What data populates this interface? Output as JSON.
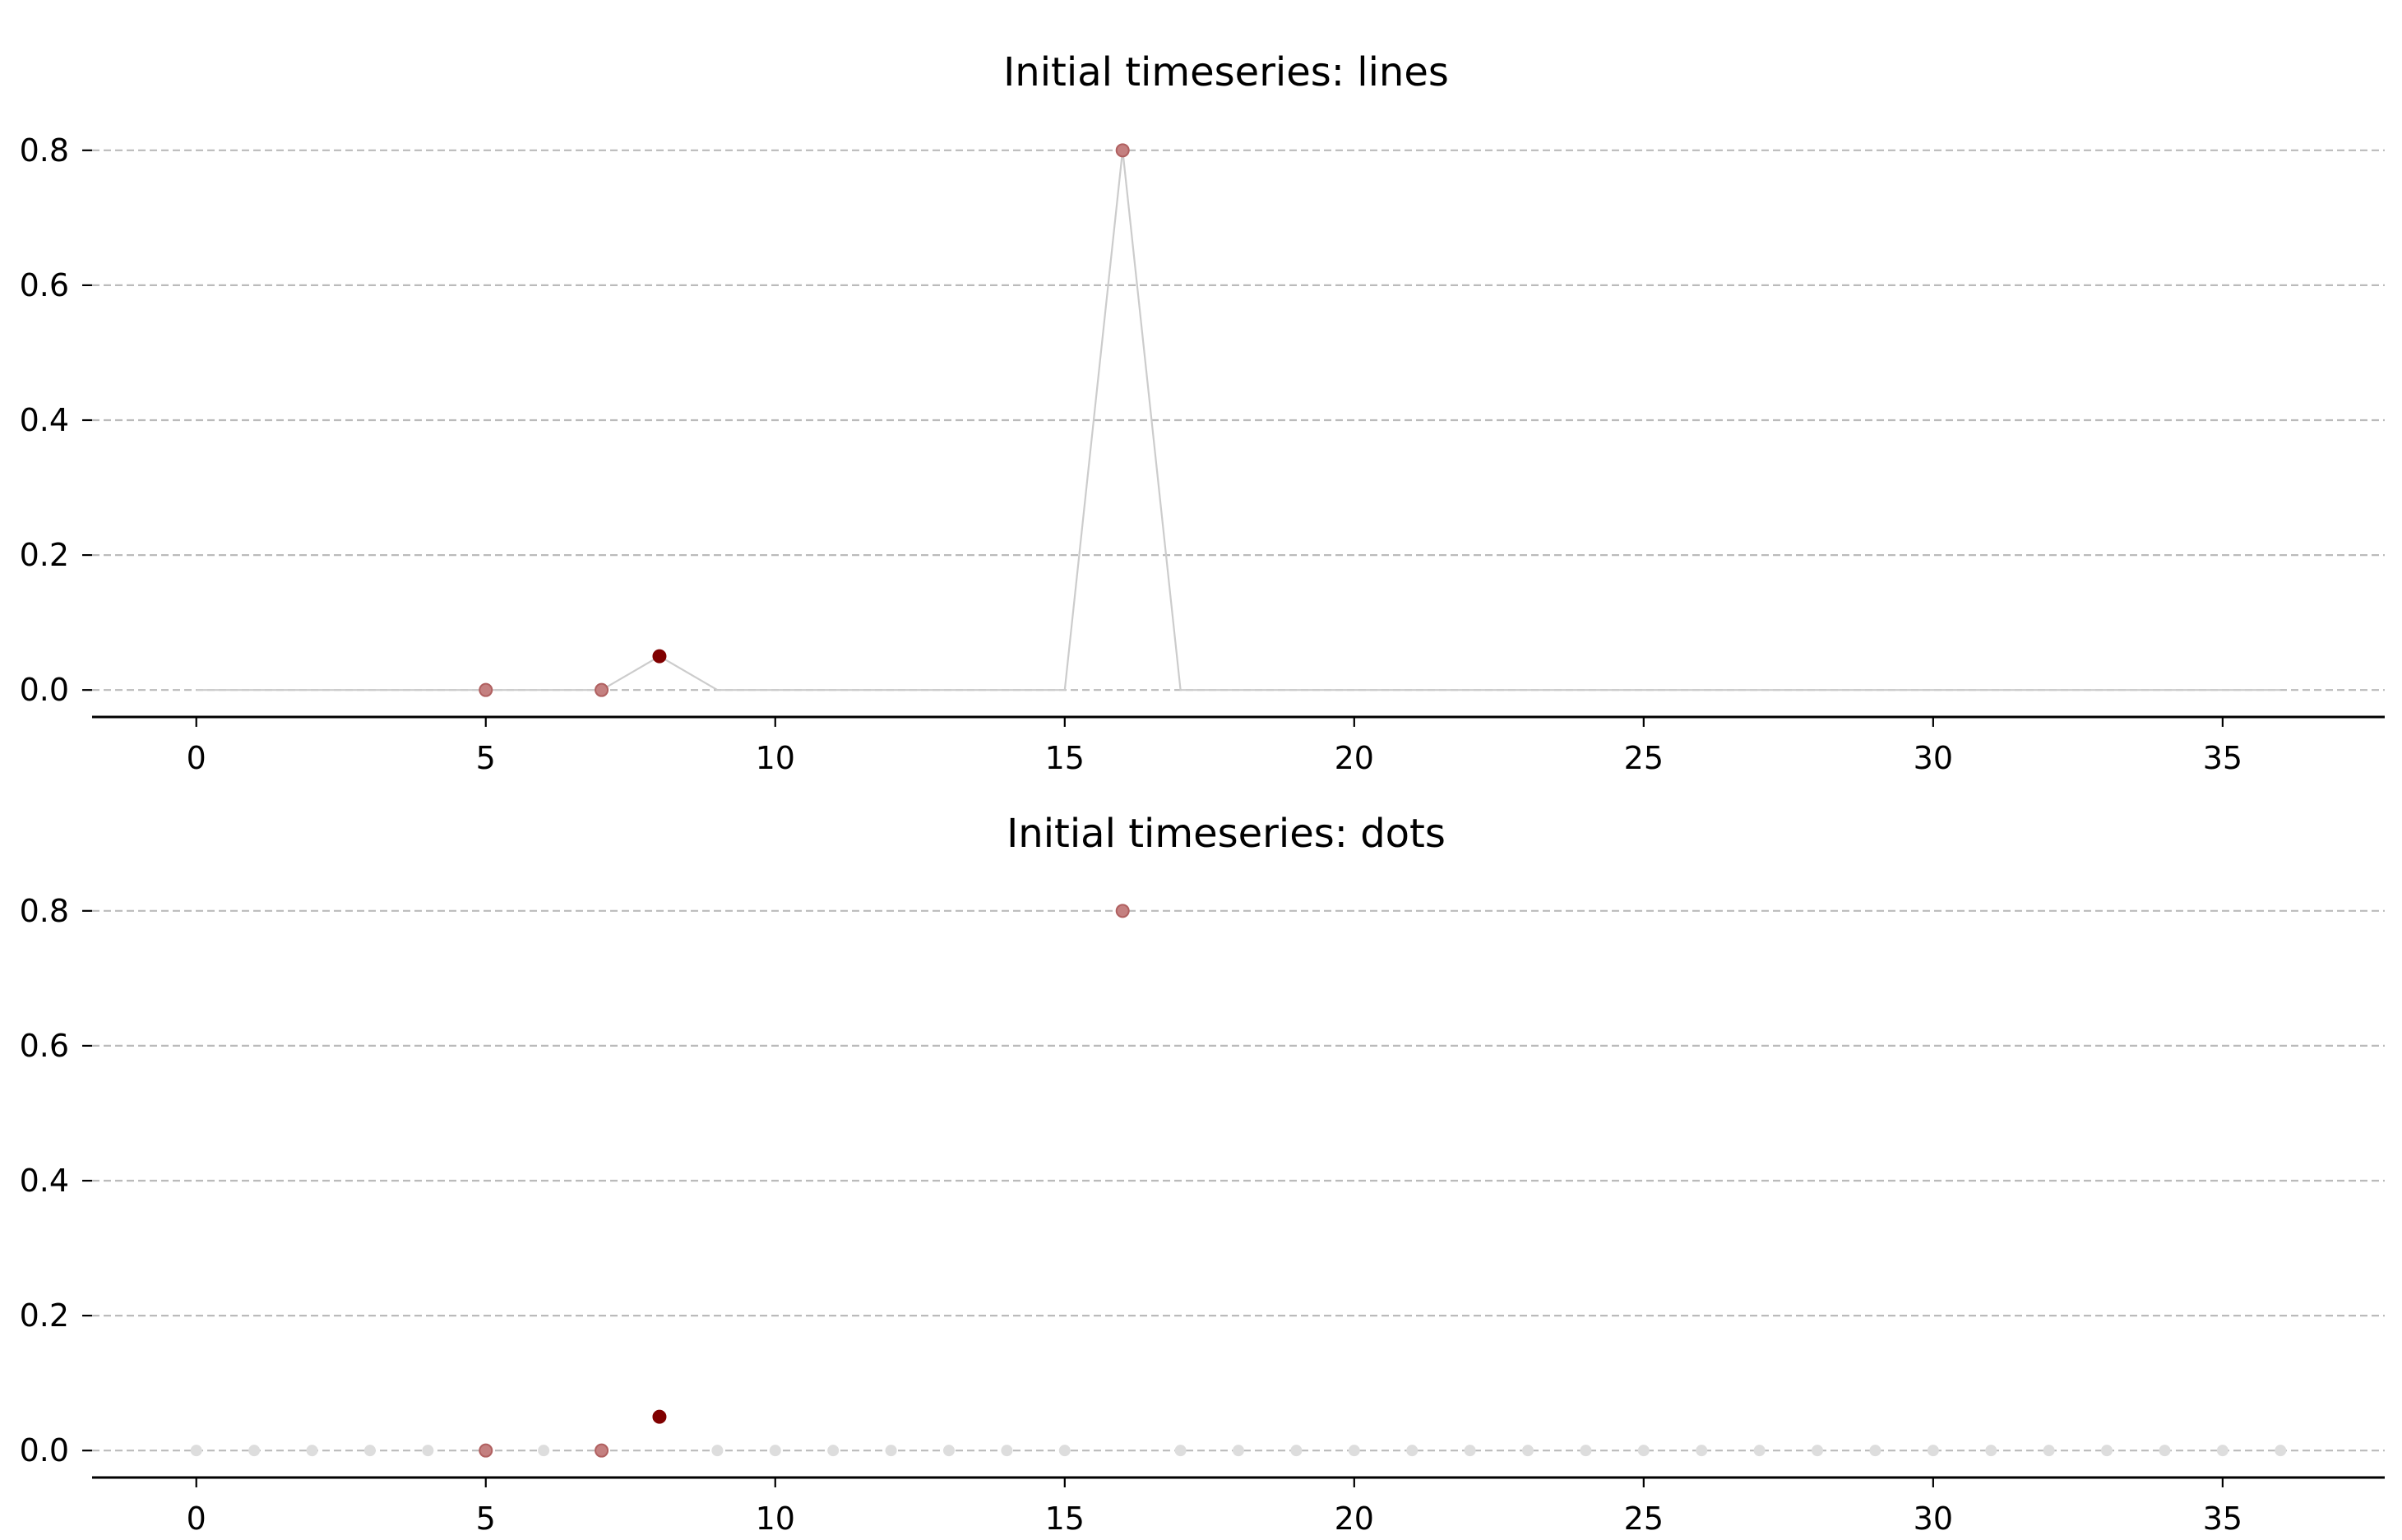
{
  "chart_data": [
    {
      "type": "line",
      "title": "Initial timeseries: lines",
      "xlabel": "",
      "ylabel": "",
      "x": [
        0,
        1,
        2,
        3,
        4,
        5,
        6,
        7,
        8,
        9,
        10,
        11,
        12,
        13,
        14,
        15,
        16,
        17,
        18,
        19,
        20,
        21,
        22,
        23,
        24,
        25,
        26,
        27,
        28,
        29,
        30,
        31,
        32,
        33,
        34,
        35,
        36
      ],
      "series": [
        {
          "values": [
            0,
            0,
            0,
            0,
            0,
            0,
            0,
            0,
            0.05,
            0,
            0,
            0,
            0,
            0,
            0,
            0,
            0.8,
            0,
            0,
            0,
            0,
            0,
            0,
            0,
            0,
            0,
            0,
            0,
            0,
            0,
            0,
            0,
            0,
            0,
            0,
            0,
            0
          ],
          "line_color": "#cccccc"
        }
      ],
      "highlighted_points": [
        {
          "x": 5,
          "y": 0.0,
          "style": "faded"
        },
        {
          "x": 7,
          "y": 0.0,
          "style": "faded"
        },
        {
          "x": 8,
          "y": 0.05,
          "style": "solid"
        },
        {
          "x": 16,
          "y": 0.8,
          "style": "faded"
        }
      ],
      "xticks": [
        0,
        5,
        10,
        15,
        20,
        25,
        30,
        35
      ],
      "yticks": [
        "0.0",
        "0.2",
        "0.4",
        "0.6",
        "0.8"
      ],
      "xlim": [
        -1.8,
        37.8
      ],
      "ylim": [
        -0.04,
        0.84
      ],
      "grid": "horizontal dashed",
      "colors": {
        "grid": "#bbbbbb",
        "solid_marker": "#800000",
        "faded_marker": "#c48080",
        "line": "#cccccc"
      }
    },
    {
      "type": "scatter",
      "title": "Initial timeseries: dots",
      "xlabel": "",
      "ylabel": "",
      "x": [
        0,
        1,
        2,
        3,
        4,
        5,
        6,
        7,
        8,
        9,
        10,
        11,
        12,
        13,
        14,
        15,
        16,
        17,
        18,
        19,
        20,
        21,
        22,
        23,
        24,
        25,
        26,
        27,
        28,
        29,
        30,
        31,
        32,
        33,
        34,
        35,
        36
      ],
      "series": [
        {
          "values": [
            0,
            0,
            0,
            0,
            0,
            0,
            0,
            0,
            0.05,
            0,
            0,
            0,
            0,
            0,
            0,
            0,
            0.8,
            0,
            0,
            0,
            0,
            0,
            0,
            0,
            0,
            0,
            0,
            0,
            0,
            0,
            0,
            0,
            0,
            0,
            0,
            0,
            0
          ],
          "dot_color": "#dddddd"
        }
      ],
      "highlighted_points": [
        {
          "x": 5,
          "y": 0.0,
          "style": "faded"
        },
        {
          "x": 7,
          "y": 0.0,
          "style": "faded"
        },
        {
          "x": 8,
          "y": 0.05,
          "style": "solid"
        },
        {
          "x": 16,
          "y": 0.8,
          "style": "faded"
        }
      ],
      "xticks": [
        0,
        5,
        10,
        15,
        20,
        25,
        30,
        35
      ],
      "yticks": [
        "0.0",
        "0.2",
        "0.4",
        "0.6",
        "0.8"
      ],
      "xlim": [
        -1.8,
        37.8
      ],
      "ylim": [
        -0.04,
        0.84
      ],
      "grid": "horizontal dashed",
      "colors": {
        "grid": "#bbbbbb",
        "solid_marker": "#800000",
        "faded_marker": "#c48080",
        "dot": "#dddddd"
      }
    }
  ]
}
